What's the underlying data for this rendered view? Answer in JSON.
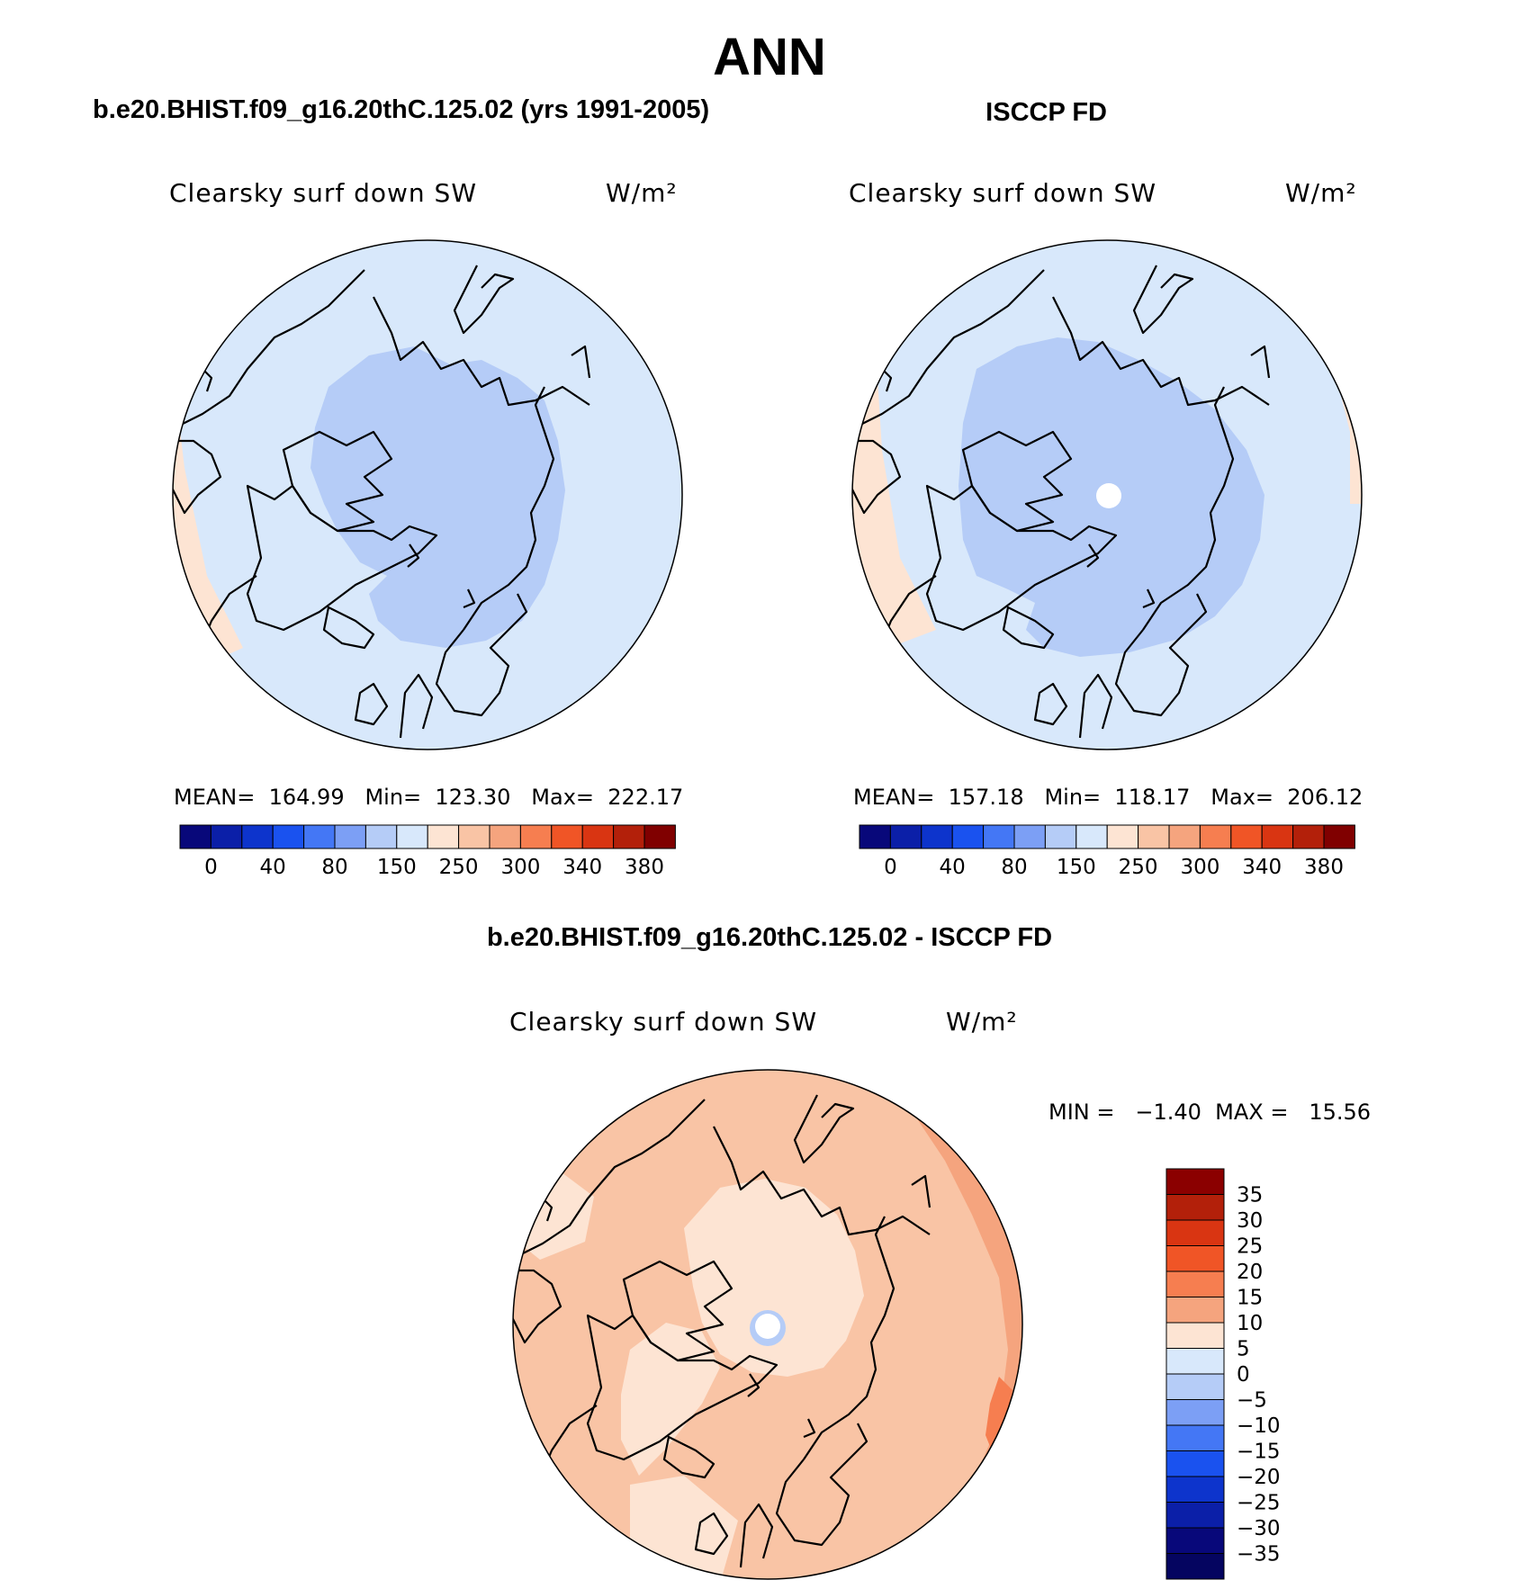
{
  "figure": {
    "title": "ANN"
  },
  "panels": {
    "model": {
      "title": "b.e20.BHIST.f09_g16.20thC.125.02 (yrs 1991-2005)",
      "variable": "Clearsky surf down SW",
      "units": "W/m²",
      "stats": "MEAN=  164.99   Min=  123.30   Max=  222.17"
    },
    "obs": {
      "title": "ISCCP FD",
      "variable": "Clearsky surf down SW",
      "units": "W/m²",
      "stats": "MEAN=  157.18   Min=  118.17   Max=  206.12"
    },
    "diff": {
      "title": "b.e20.BHIST.f09_g16.20thC.125.02 - ISCCP FD",
      "variable": "Clearsky surf down SW",
      "units": "W/m²",
      "stats": "MIN =   −1.40  MAX =   15.56"
    }
  },
  "chart_data": [
    {
      "type": "heatmap",
      "projection": "north-polar-stereographic",
      "colorbar": {
        "orientation": "horizontal",
        "tick_labels": [
          "0",
          "40",
          "80",
          "150",
          "250",
          "300",
          "340",
          "380"
        ],
        "colors": [
          "#08087a",
          "#0b1fa8",
          "#0d34cc",
          "#1a52ef",
          "#4477f5",
          "#7c9ff5",
          "#b5ccf7",
          "#d8e8fb",
          "#fde4d3",
          "#f9c4a5",
          "#f5a47e",
          "#f67e50",
          "#f05526",
          "#d93512",
          "#b3200a",
          "#800000"
        ]
      },
      "regions": [
        {
          "level": "150-200",
          "color": "#d8e8fb",
          "area": "most of domain"
        },
        {
          "level": "100-150",
          "color": "#b5ccf7",
          "area": "central Arctic"
        },
        {
          "level": "200-250",
          "color": "#fde4d3",
          "area": "southern edge"
        }
      ]
    },
    {
      "type": "heatmap",
      "projection": "north-polar-stereographic",
      "colorbar": {
        "orientation": "horizontal",
        "tick_labels": [
          "0",
          "40",
          "80",
          "150",
          "250",
          "300",
          "340",
          "380"
        ],
        "colors": [
          "#08087a",
          "#0b1fa8",
          "#0d34cc",
          "#1a52ef",
          "#4477f5",
          "#7c9ff5",
          "#b5ccf7",
          "#d8e8fb",
          "#fde4d3",
          "#f9c4a5",
          "#f5a47e",
          "#f67e50",
          "#f05526",
          "#d93512",
          "#b3200a",
          "#800000"
        ]
      },
      "regions": [
        {
          "level": "150-200",
          "color": "#d8e8fb",
          "area": "most of domain"
        },
        {
          "level": "100-150",
          "color": "#b5ccf7",
          "area": "central Arctic"
        },
        {
          "level": "200-250",
          "color": "#fde4d3",
          "area": "southern edge"
        }
      ]
    },
    {
      "type": "heatmap",
      "projection": "north-polar-stereographic",
      "colorbar": {
        "orientation": "vertical",
        "tick_labels": [
          "35",
          "30",
          "25",
          "20",
          "15",
          "10",
          "5",
          "0",
          "−5",
          "−10",
          "−15",
          "−20",
          "−25",
          "−30",
          "−35"
        ],
        "colors": [
          "#8b0000",
          "#b3200a",
          "#d93512",
          "#f05526",
          "#f67e50",
          "#f5a47e",
          "#fde4d3",
          "#d8e8fb",
          "#b5ccf7",
          "#7c9ff5",
          "#4477f5",
          "#1a52ef",
          "#0d34cc",
          "#0b1fa8",
          "#08087a",
          "#050560"
        ]
      },
      "regions": [
        {
          "level": "5-10",
          "color": "#f9c4a5",
          "area": "most of domain"
        },
        {
          "level": "0-5",
          "color": "#fde4d3",
          "area": "central Arctic and Greenland"
        },
        {
          "level": "10-15",
          "color": "#f5a47e",
          "area": "eastern edge"
        },
        {
          "level": "15-20",
          "color": "#f67e50",
          "area": "eastern rim"
        }
      ]
    }
  ]
}
